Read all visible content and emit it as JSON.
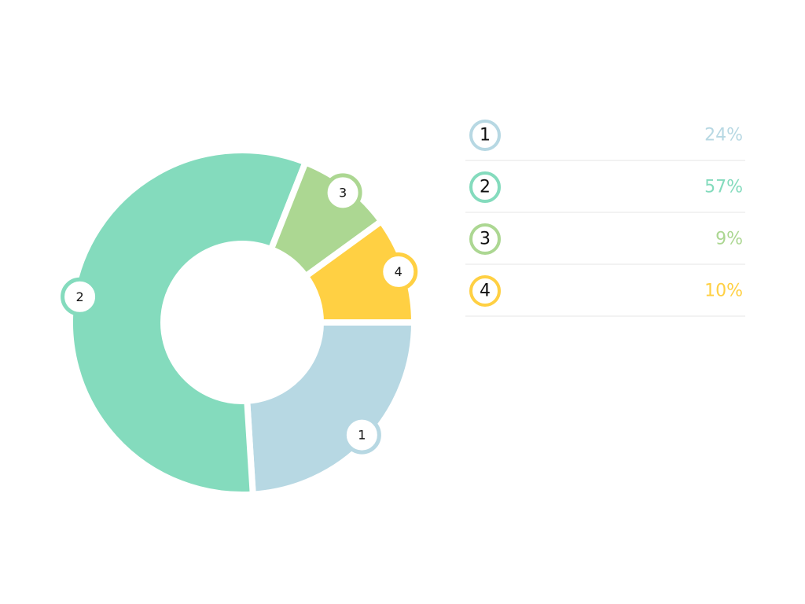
{
  "chart_data": {
    "type": "donut",
    "categories": [
      "1",
      "2",
      "3",
      "4"
    ],
    "values": [
      24,
      57,
      9,
      10
    ],
    "value_labels": [
      "24%",
      "57%",
      "9%",
      "10%"
    ],
    "colors": [
      "#b7d8e3",
      "#84dbbd",
      "#acd792",
      "#ffd043"
    ],
    "legend": "right"
  }
}
